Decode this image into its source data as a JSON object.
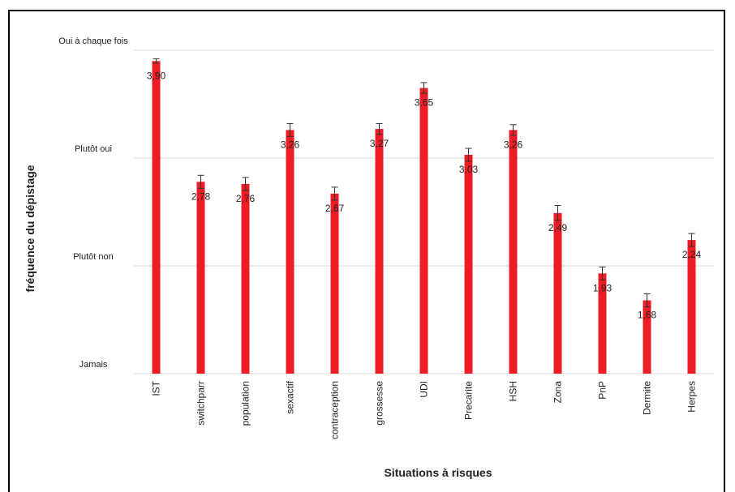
{
  "chart_data": {
    "type": "bar",
    "title": "",
    "xlabel": "Situations à risques",
    "ylabel": "fréquence du dépistage",
    "ylim": [
      1,
      4
    ],
    "yticks": [
      {
        "value": 1,
        "label": "Jamais"
      },
      {
        "value": 2,
        "label": "Plutôt non"
      },
      {
        "value": 3,
        "label": "Plutôt oui"
      },
      {
        "value": 4,
        "label": "Oui à chaque fois"
      }
    ],
    "categories": [
      "IST",
      "switchparr",
      "population",
      "sexactif",
      "contraception",
      "grossesse",
      "UDI",
      "Precarite",
      "HSH",
      "Zona",
      "PnP",
      "Dermite",
      "Herpes"
    ],
    "values": [
      3.9,
      2.78,
      2.76,
      3.26,
      2.67,
      3.27,
      3.65,
      3.03,
      3.26,
      2.49,
      1.93,
      1.68,
      2.24
    ],
    "value_labels": [
      "3,90",
      "2,78",
      "2,76",
      "3,26",
      "2,67",
      "3,27",
      "3,65",
      "3,03",
      "3,26",
      "2,49",
      "1,93",
      "1,68",
      "2,24"
    ],
    "errors": [
      0.02,
      0.06,
      0.06,
      0.06,
      0.06,
      0.05,
      0.05,
      0.06,
      0.05,
      0.07,
      0.06,
      0.06,
      0.06
    ],
    "grid": true,
    "bar_color": "#ee1c25",
    "legend": "none"
  }
}
